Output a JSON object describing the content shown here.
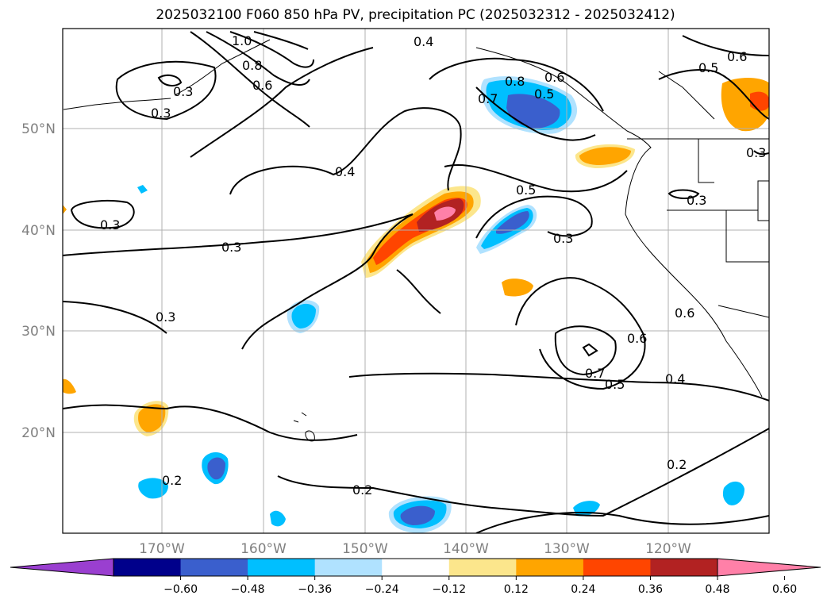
{
  "title": "2025032100 F060 850 hPa PV, precipitation PC (2025032312 - 2025032412)",
  "map": {
    "lon_labels": [
      "170°W",
      "160°W",
      "150°W",
      "140°W",
      "130°W",
      "120°W"
    ],
    "lat_labels": [
      "50°N",
      "40°N",
      "30°N",
      "20°N"
    ],
    "contour_labels": [
      "1.0",
      "0.8",
      "0.6",
      "0.4",
      "0.3",
      "0.6",
      "0.8",
      "0.7",
      "0.5",
      "0.4",
      "0.3",
      "0.3",
      "0.3",
      "0.5",
      "0.3",
      "0.3",
      "0.3",
      "0.6",
      "0.6",
      "0.7",
      "0.5",
      "0.4",
      "0.2",
      "0.2",
      "0.2",
      "0.6",
      "0.5",
      "0.3"
    ]
  },
  "colorbar": {
    "ticks": [
      "−0.60",
      "−0.48",
      "−0.36",
      "−0.24",
      "−0.12",
      "0.12",
      "0.24",
      "0.36",
      "0.48",
      "0.60"
    ],
    "colors": [
      "#9a3fd0",
      "#00008b",
      "#3a5fcd",
      "#00bfff",
      "#b0e2ff",
      "#ffffff",
      "#fce68c",
      "#ffa500",
      "#ff4500",
      "#b22222",
      "#ff80a8"
    ]
  }
}
